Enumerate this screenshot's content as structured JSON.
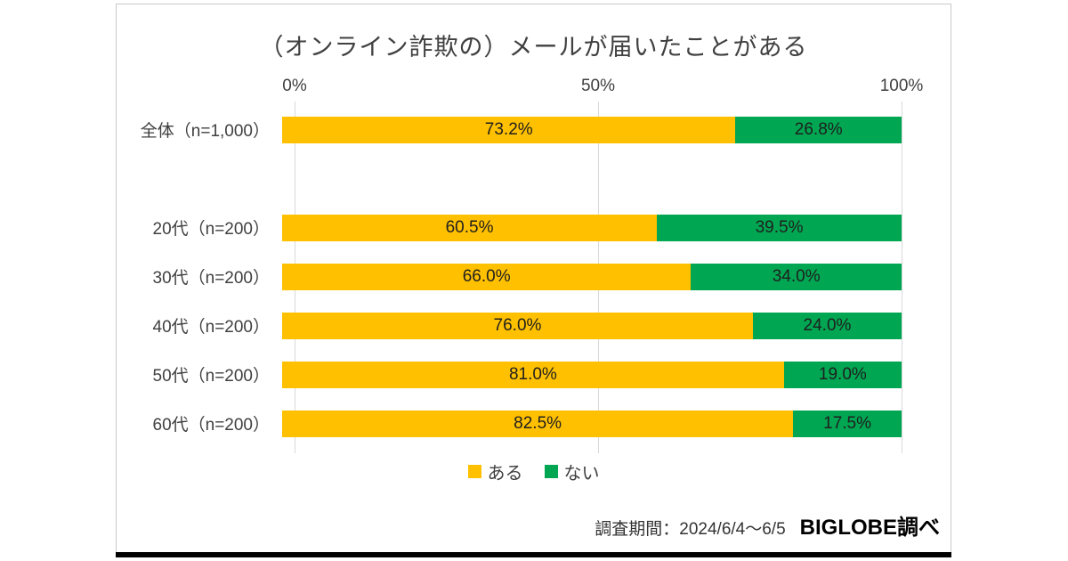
{
  "chart_data": {
    "type": "bar",
    "orientation": "horizontal",
    "stacked": true,
    "title": "（オンライン詐欺の）メールが届いたことがある",
    "categories": [
      "全体（n=1,000）",
      "20代（n=200）",
      "30代（n=200）",
      "40代（n=200）",
      "50代（n=200）",
      "60代（n=200）"
    ],
    "series": [
      {
        "name": "ある",
        "color": "#FFC000",
        "values": [
          73.2,
          60.5,
          66.0,
          76.0,
          81.0,
          82.5
        ]
      },
      {
        "name": "ない",
        "color": "#00A651",
        "values": [
          26.8,
          39.5,
          34.0,
          24.0,
          19.0,
          17.5
        ]
      }
    ],
    "value_suffix": "%",
    "xlim": [
      0,
      100
    ],
    "x_ticks": [
      "0%",
      "50%",
      "100%"
    ],
    "gap_after_index": 0,
    "grid": true,
    "legend_position": "bottom"
  },
  "footer": {
    "survey_period": "調査期間：2024/6/4～6/5",
    "source": "BIGLOBE調べ"
  }
}
